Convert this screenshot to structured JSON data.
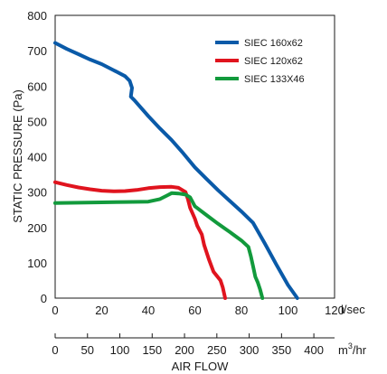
{
  "chart_data": {
    "type": "line",
    "xlabel": "AIR FLOW",
    "ylabel": "STATIC PRESSURE (Pa)",
    "x_unit_primary": "l/sec",
    "x_unit_secondary_base": "m",
    "x_unit_secondary_sup": "3",
    "x_unit_secondary_tail": "/hr",
    "xlim": [
      0,
      120
    ],
    "ylim": [
      0,
      800
    ],
    "x_ticks": [
      0,
      20,
      40,
      60,
      80,
      100,
      120
    ],
    "y_ticks": [
      0,
      100,
      200,
      300,
      400,
      500,
      600,
      700,
      800
    ],
    "x2_ticks": [
      0,
      50,
      100,
      150,
      200,
      250,
      300,
      350,
      400
    ],
    "x2_lim": [
      0,
      432
    ],
    "grid": false,
    "legend_position": "top-right",
    "series": [
      {
        "name": "SIEC 160x62",
        "color": "#0a5aa8",
        "points": [
          [
            0,
            722
          ],
          [
            5,
            705
          ],
          [
            10,
            690
          ],
          [
            15,
            675
          ],
          [
            20,
            662
          ],
          [
            25,
            645
          ],
          [
            30,
            628
          ],
          [
            32,
            615
          ],
          [
            33,
            595
          ],
          [
            32.5,
            570
          ],
          [
            34,
            560
          ],
          [
            40,
            515
          ],
          [
            45,
            480
          ],
          [
            50,
            447
          ],
          [
            55,
            410
          ],
          [
            60,
            370
          ],
          [
            65,
            337
          ],
          [
            70,
            305
          ],
          [
            75,
            275
          ],
          [
            80,
            245
          ],
          [
            85,
            213
          ],
          [
            90,
            155
          ],
          [
            95,
            95
          ],
          [
            100,
            37
          ],
          [
            104,
            0
          ]
        ]
      },
      {
        "name": "SIEC 120x62",
        "color": "#e0141e",
        "points": [
          [
            0,
            328
          ],
          [
            5,
            320
          ],
          [
            10,
            313
          ],
          [
            15,
            308
          ],
          [
            20,
            304
          ],
          [
            25,
            302
          ],
          [
            30,
            303
          ],
          [
            35,
            306
          ],
          [
            40,
            311
          ],
          [
            45,
            314
          ],
          [
            50,
            315
          ],
          [
            53,
            312
          ],
          [
            56,
            300
          ],
          [
            57,
            280
          ],
          [
            58,
            255
          ],
          [
            60,
            225
          ],
          [
            61,
            205
          ],
          [
            63,
            180
          ],
          [
            64,
            150
          ],
          [
            66,
            110
          ],
          [
            68,
            75
          ],
          [
            71,
            50
          ],
          [
            72,
            30
          ],
          [
            73,
            0
          ]
        ]
      },
      {
        "name": "SIEC 133X46",
        "color": "#129a3c",
        "points": [
          [
            0,
            269
          ],
          [
            10,
            270
          ],
          [
            20,
            271
          ],
          [
            30,
            272
          ],
          [
            40,
            273
          ],
          [
            45,
            280
          ],
          [
            48,
            290
          ],
          [
            50,
            297
          ],
          [
            53,
            296
          ],
          [
            56,
            293
          ],
          [
            58,
            285
          ],
          [
            60,
            260
          ],
          [
            65,
            235
          ],
          [
            70,
            210
          ],
          [
            75,
            187
          ],
          [
            80,
            163
          ],
          [
            83,
            145
          ],
          [
            84,
            120
          ],
          [
            85,
            90
          ],
          [
            86,
            60
          ],
          [
            87,
            45
          ],
          [
            88,
            25
          ],
          [
            89,
            0
          ]
        ]
      }
    ]
  }
}
